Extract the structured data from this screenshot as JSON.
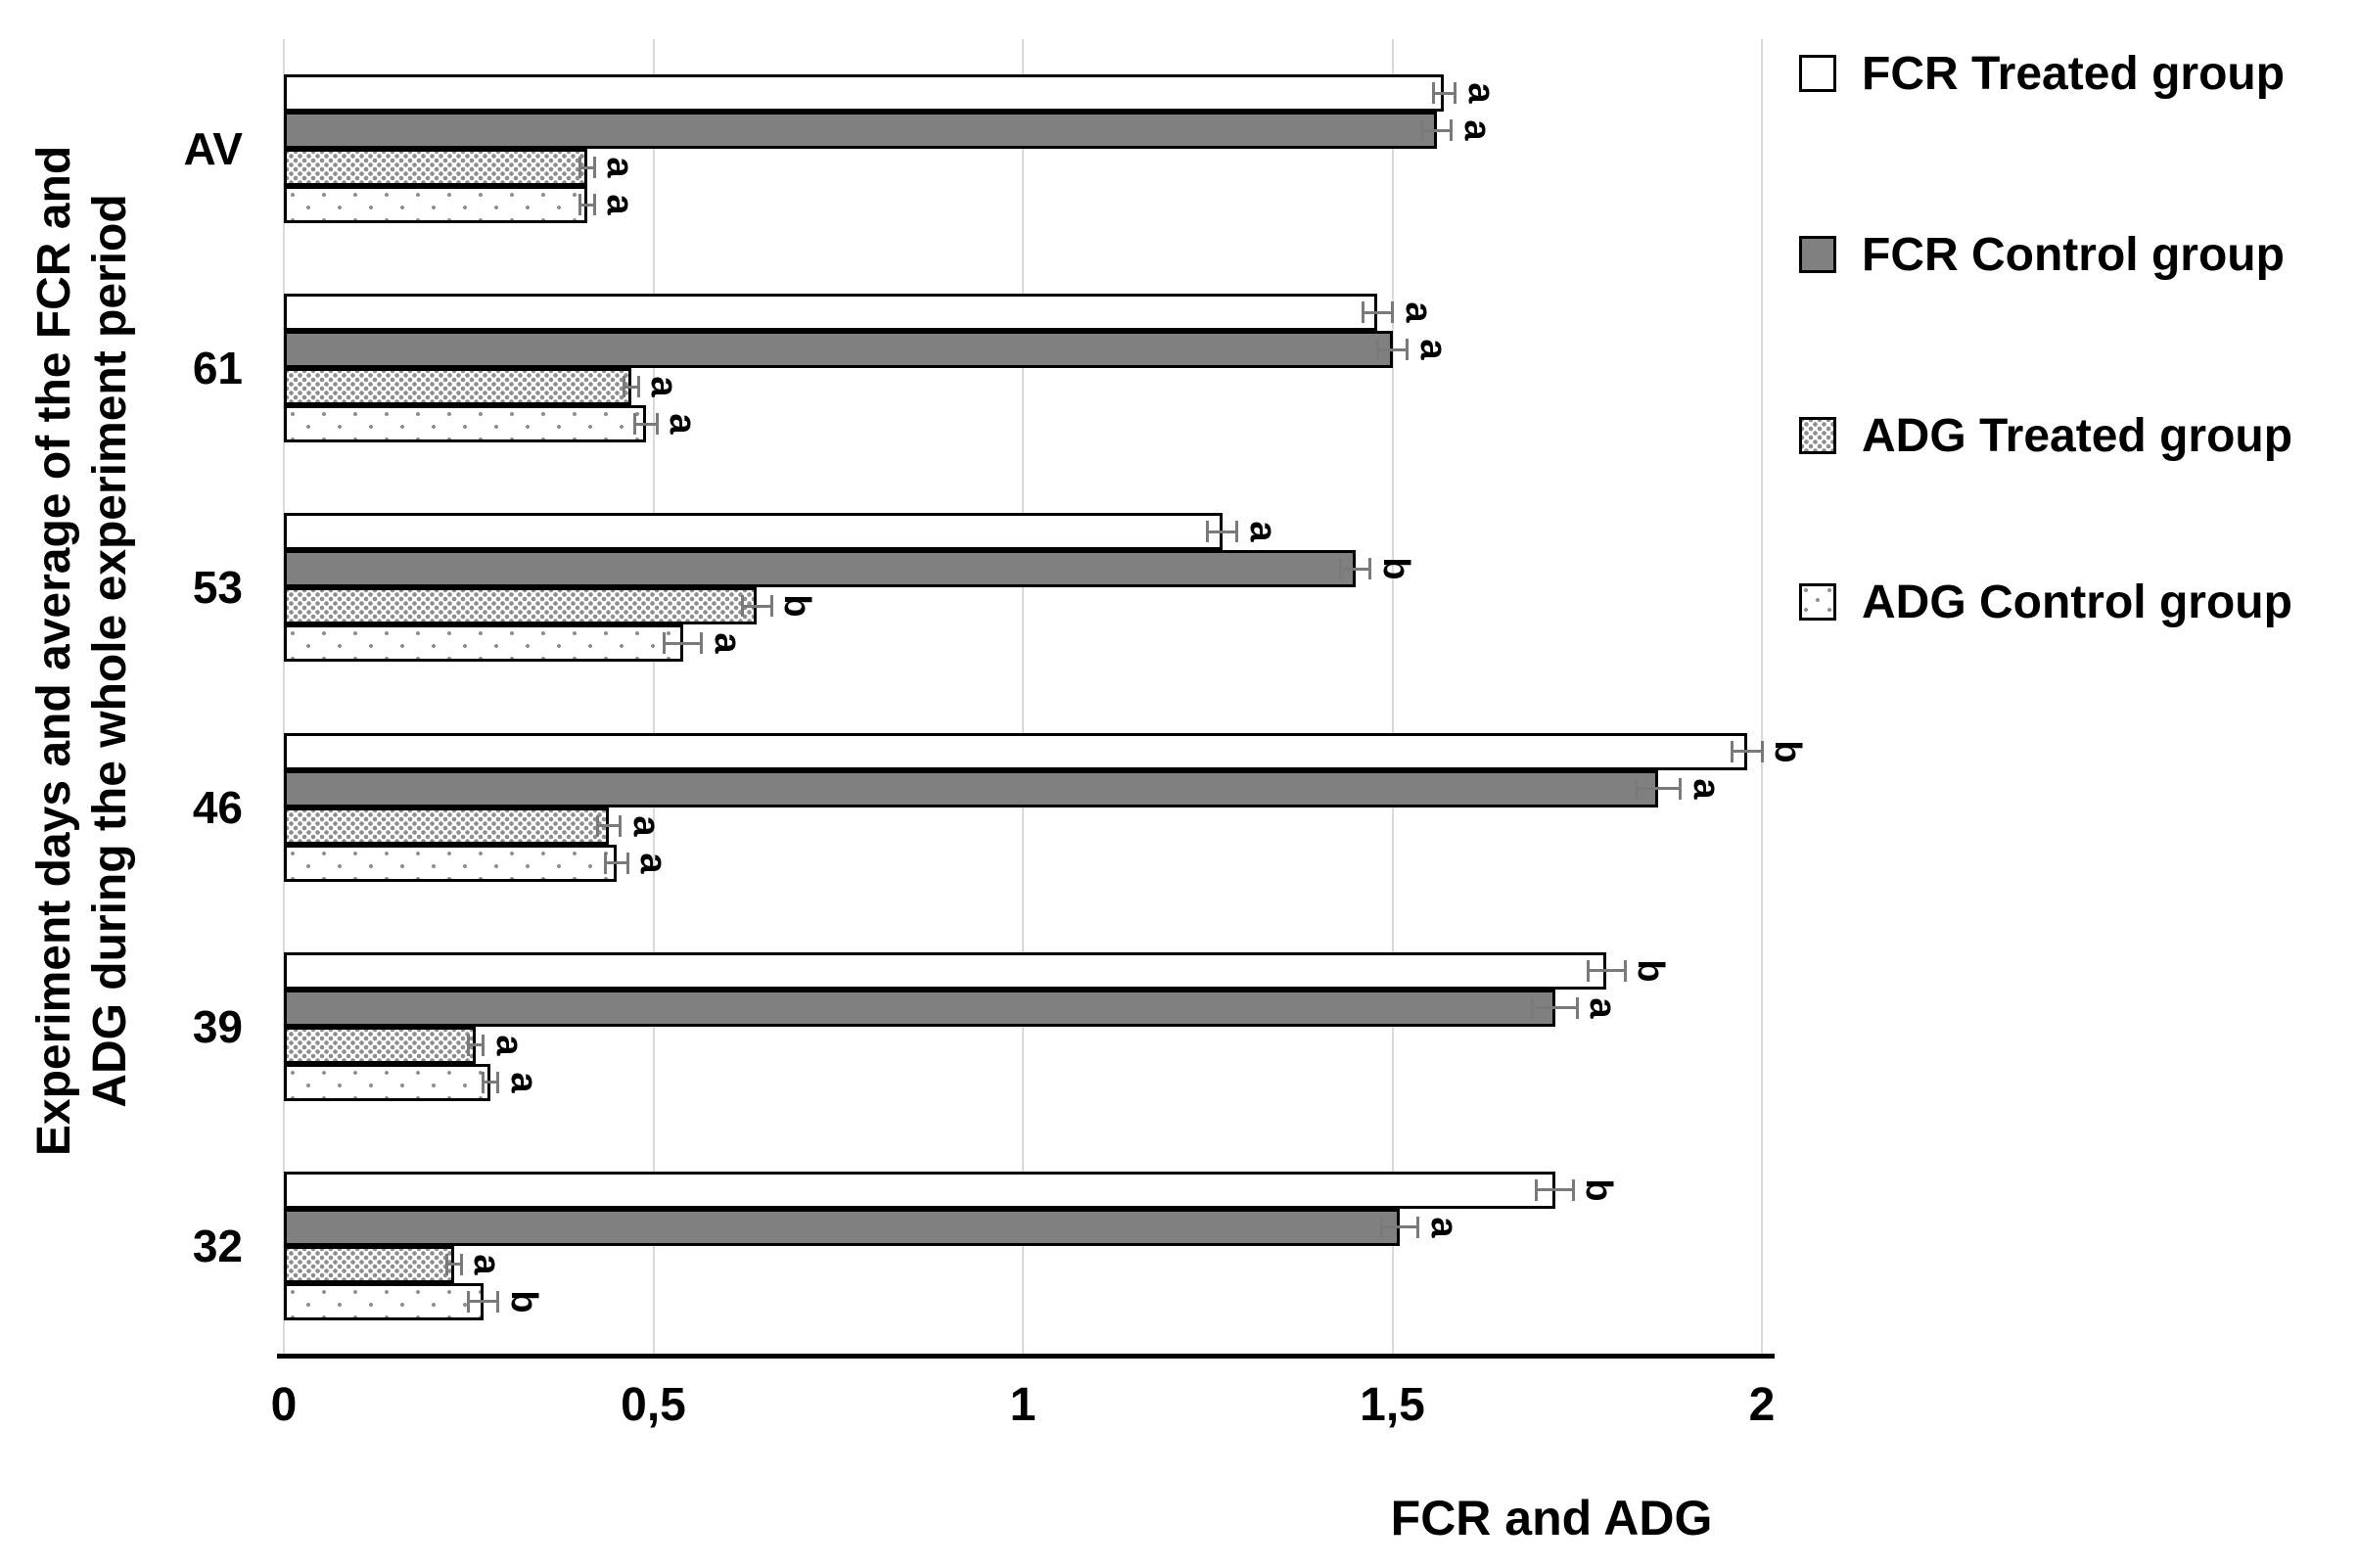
{
  "figure": {
    "x_axis_title": "FCR and ADG",
    "y_axis_title_line1": "Experiment days and average of the FCR and",
    "y_axis_title_line2": "ADG during the whole experiment period"
  },
  "colors": {
    "bar_gray": "#808080",
    "bar_border": "#000000",
    "gridline": "#d9d9d9",
    "error_bar": "#7a7a7a",
    "background": "#ffffff"
  },
  "chart_data": {
    "type": "bar",
    "orientation": "horizontal",
    "title": "",
    "xlabel": "FCR and ADG",
    "ylabel": "Experiment days and average of the FCR and ADG during the whole experiment period",
    "xlim": [
      0,
      2
    ],
    "grid": true,
    "legend_position": "right",
    "decimal_separator": ",",
    "categories": [
      "AV",
      "61",
      "53",
      "46",
      "39",
      "32"
    ],
    "x_ticks": [
      {
        "value": 0,
        "label": "0"
      },
      {
        "value": 0.5,
        "label": "0,5"
      },
      {
        "value": 1,
        "label": "1"
      },
      {
        "value": 1.5,
        "label": "1,5"
      },
      {
        "value": 2,
        "label": "2"
      }
    ],
    "series": [
      {
        "name": "FCR Treated group",
        "style": "white",
        "values": [
          1.57,
          1.48,
          1.27,
          1.98,
          1.79,
          1.72
        ],
        "errors": [
          0.015,
          0.02,
          0.02,
          0.02,
          0.025,
          0.025
        ],
        "letters": [
          "a",
          "a",
          "a",
          "b",
          "b",
          "b"
        ]
      },
      {
        "name": "FCR Control group",
        "style": "gray",
        "values": [
          1.56,
          1.5,
          1.45,
          1.86,
          1.72,
          1.51
        ],
        "errors": [
          0.02,
          0.02,
          0.02,
          0.03,
          0.03,
          0.025
        ],
        "letters": [
          "a",
          "a",
          "b",
          "a",
          "a",
          "a"
        ]
      },
      {
        "name": "ADG Treated group",
        "style": "dots-dense",
        "values": [
          0.41,
          0.47,
          0.64,
          0.44,
          0.26,
          0.23
        ],
        "errors": [
          0.01,
          0.01,
          0.02,
          0.015,
          0.01,
          0.01
        ],
        "letters": [
          "a",
          "a",
          "b",
          "a",
          "a",
          "a"
        ]
      },
      {
        "name": "ADG Control group",
        "style": "dots-sparse",
        "values": [
          0.41,
          0.49,
          0.54,
          0.45,
          0.28,
          0.27
        ],
        "errors": [
          0.01,
          0.015,
          0.025,
          0.015,
          0.01,
          0.02
        ],
        "letters": [
          "a",
          "a",
          "a",
          "a",
          "a",
          "b"
        ]
      }
    ]
  }
}
